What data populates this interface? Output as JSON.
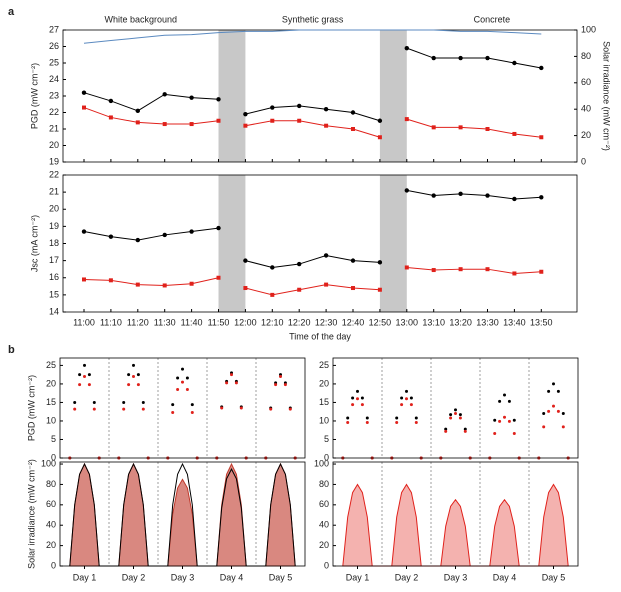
{
  "chart_data": [
    {
      "type": "line",
      "panel": "a",
      "annotations": [
        "White background",
        "Synthetic grass",
        "Concrete"
      ],
      "ylabel": "PGD (mW cm⁻²)",
      "y2label": "Solar irradiance (mW cm⁻²)",
      "ylim": [
        19,
        27
      ],
      "yticks": [
        19,
        20,
        21,
        22,
        23,
        24,
        25,
        26,
        27
      ],
      "y2lim": [
        0,
        100
      ],
      "y2ticks": [
        0,
        20,
        40,
        60,
        80,
        100
      ],
      "series": [
        {
          "color": "#000000",
          "markers": true,
          "values": [
            23.2,
            22.7,
            22.1,
            23.1,
            22.9,
            22.8,
            21.9,
            22.3,
            22.4,
            22.2,
            22.0,
            21.5,
            25.9,
            25.3,
            25.3,
            25.3,
            25.0,
            24.7
          ]
        },
        {
          "color": "#e0211b",
          "markers": true,
          "values": [
            22.3,
            21.7,
            21.4,
            21.3,
            21.3,
            21.5,
            21.2,
            21.5,
            21.5,
            21.2,
            21.0,
            20.5,
            21.6,
            21.1,
            21.1,
            21.0,
            20.7,
            20.5
          ]
        },
        {
          "color": "#5b8ac0",
          "markers": false,
          "axis": "y2",
          "values": [
            90,
            92,
            94,
            96,
            96.5,
            98,
            99,
            99,
            100,
            100,
            100,
            100,
            100,
            100,
            99,
            99,
            98,
            97
          ]
        }
      ]
    },
    {
      "type": "line",
      "ylabel": "Jsc (mA cm⁻²)",
      "xlabel": "Time of the day",
      "categories": [
        "11:00",
        "11:10",
        "11:20",
        "11:30",
        "11:40",
        "11:50",
        "12:00",
        "12:10",
        "12:20",
        "12:30",
        "12:40",
        "12:50",
        "13:00",
        "13:10",
        "13:20",
        "13:30",
        "13:40",
        "13:50"
      ],
      "shaded": [
        [
          "11:50",
          "12:00"
        ],
        [
          "12:50",
          "13:00"
        ]
      ],
      "ylim": [
        14,
        22
      ],
      "yticks": [
        14,
        15,
        16,
        17,
        18,
        19,
        20,
        21,
        22
      ],
      "series": [
        {
          "color": "#000000",
          "markers": true,
          "values": [
            18.7,
            18.4,
            18.2,
            18.5,
            18.7,
            18.9,
            17.0,
            16.6,
            16.8,
            17.3,
            17.0,
            16.9,
            21.1,
            20.8,
            20.9,
            20.8,
            20.6,
            20.7
          ]
        },
        {
          "color": "#e0211b",
          "markers": true,
          "values": [
            15.9,
            15.85,
            15.6,
            15.55,
            15.65,
            16.0,
            15.4,
            15.0,
            15.3,
            15.6,
            15.4,
            15.3,
            16.6,
            16.45,
            16.5,
            16.5,
            16.25,
            16.35
          ]
        }
      ]
    },
    {
      "type": "scatter",
      "panel": "b",
      "ylabel": "PGD (mW cm⁻²)",
      "xlim": [
        0,
        5
      ],
      "xgrid": [
        1,
        2,
        3,
        4
      ],
      "ylim": [
        0,
        27
      ],
      "yticks": [
        0,
        5,
        10,
        15,
        20,
        25
      ],
      "x": [
        0.2,
        0.3,
        0.4,
        0.5,
        0.6,
        0.7,
        0.8,
        1.2,
        1.3,
        1.4,
        1.5,
        1.6,
        1.7,
        1.8,
        2.2,
        2.3,
        2.4,
        2.5,
        2.6,
        2.7,
        2.8,
        3.2,
        3.3,
        3.4,
        3.5,
        3.6,
        3.7,
        3.8,
        4.2,
        4.3,
        4.4,
        4.5,
        4.6,
        4.7,
        4.8
      ],
      "series": [
        {
          "color": "#000000",
          "values": [
            0,
            15,
            22.5,
            25,
            22.5,
            15,
            0,
            0,
            15,
            22.5,
            25,
            22.5,
            15,
            0,
            0,
            14.4,
            21.6,
            24,
            21.6,
            14.4,
            0,
            0,
            13.8,
            20.7,
            23,
            20.7,
            13.8,
            0,
            0,
            13.5,
            20.3,
            22.5,
            20.3,
            13.5,
            0
          ]
        },
        {
          "color": "#e0211b",
          "values": [
            0,
            13.2,
            19.8,
            22,
            19.8,
            13.2,
            0,
            0,
            13.2,
            19.8,
            22,
            19.8,
            13.2,
            0,
            0,
            12.3,
            18.5,
            20.5,
            18.5,
            12.3,
            0,
            0,
            13.5,
            20.3,
            22.5,
            20.3,
            13.5,
            0,
            0,
            13.2,
            19.8,
            22,
            19.8,
            13.2,
            0
          ]
        }
      ]
    },
    {
      "type": "area",
      "ylabel": "Solar irradiance (mW cm⁻²)",
      "xlim": [
        0,
        5
      ],
      "xgrid": [
        1,
        2,
        3,
        4
      ],
      "ylim": [
        0,
        102
      ],
      "yticks": [
        0,
        20,
        40,
        60,
        80,
        100
      ],
      "xticks": [
        {
          "value": 0.5,
          "label": "Day 1"
        },
        {
          "value": 1.5,
          "label": "Day 2"
        },
        {
          "value": 2.5,
          "label": "Day 3"
        },
        {
          "value": 3.5,
          "label": "Day 4"
        },
        {
          "value": 4.5,
          "label": "Day 5"
        }
      ],
      "x": [
        0.2,
        0.3,
        0.4,
        0.5,
        0.6,
        0.7,
        0.8,
        1.2,
        1.3,
        1.4,
        1.5,
        1.6,
        1.7,
        1.8,
        2.2,
        2.3,
        2.4,
        2.5,
        2.6,
        2.7,
        2.8,
        3.2,
        3.3,
        3.4,
        3.5,
        3.6,
        3.7,
        3.8,
        4.2,
        4.3,
        4.4,
        4.5,
        4.6,
        4.7,
        4.8
      ],
      "series": [
        {
          "color": "#c0392b",
          "style": "area",
          "values": [
            0,
            60,
            90,
            100,
            90,
            60,
            0,
            0,
            60,
            90,
            100,
            90,
            60,
            0,
            0,
            51,
            76.5,
            85,
            76.5,
            51,
            0,
            0,
            60,
            90,
            100,
            90,
            60,
            0,
            0,
            60,
            90,
            100,
            90,
            60,
            0
          ]
        },
        {
          "color": "#000000",
          "style": "line",
          "values": [
            0,
            60,
            90,
            100,
            90,
            60,
            0,
            0,
            60,
            90,
            100,
            90,
            60,
            0,
            0,
            60,
            90,
            100,
            90,
            60,
            0,
            0,
            57,
            85.5,
            95,
            85.5,
            57,
            0,
            0,
            60,
            90,
            100,
            90,
            60,
            0
          ]
        }
      ]
    },
    {
      "type": "scatter",
      "xlim": [
        0,
        5
      ],
      "xgrid": [
        1,
        2,
        3,
        4
      ],
      "ylim": [
        0,
        27
      ],
      "yticks": [
        0,
        5,
        10,
        15,
        20,
        25
      ],
      "x": [
        0.2,
        0.3,
        0.4,
        0.5,
        0.6,
        0.7,
        0.8,
        1.2,
        1.3,
        1.4,
        1.5,
        1.6,
        1.7,
        1.8,
        2.2,
        2.3,
        2.4,
        2.5,
        2.6,
        2.7,
        2.8,
        3.2,
        3.3,
        3.4,
        3.5,
        3.6,
        3.7,
        3.8,
        4.2,
        4.3,
        4.4,
        4.5,
        4.6,
        4.7,
        4.8
      ],
      "series": [
        {
          "color": "#000000",
          "values": [
            0,
            10.8,
            16.2,
            18,
            16.2,
            10.8,
            0,
            0,
            10.8,
            16.2,
            18,
            16.2,
            10.8,
            0,
            0,
            7.8,
            11.7,
            13,
            11.7,
            7.8,
            0,
            0,
            10.2,
            15.3,
            17,
            15.3,
            10.2,
            0,
            0,
            12,
            18,
            20,
            18,
            12,
            0
          ]
        },
        {
          "color": "#e0211b",
          "values": [
            0,
            9.6,
            14.4,
            16,
            14.4,
            9.6,
            0,
            0,
            9.6,
            14.4,
            16,
            14.4,
            9.6,
            0,
            0,
            7.2,
            10.8,
            12,
            10.8,
            7.2,
            0,
            0,
            6.6,
            9.9,
            11,
            9.9,
            6.6,
            0,
            0,
            8.4,
            12.6,
            14,
            12.6,
            8.4,
            0
          ]
        }
      ]
    },
    {
      "type": "area",
      "xlim": [
        0,
        5
      ],
      "xgrid": [
        1,
        2,
        3,
        4
      ],
      "ylim": [
        0,
        102
      ],
      "yticks": [
        0,
        20,
        40,
        60,
        80,
        100
      ],
      "xticks": [
        {
          "value": 0.5,
          "label": "Day 1"
        },
        {
          "value": 1.5,
          "label": "Day 2"
        },
        {
          "value": 2.5,
          "label": "Day 3"
        },
        {
          "value": 3.5,
          "label": "Day 4"
        },
        {
          "value": 4.5,
          "label": "Day 5"
        }
      ],
      "x": [
        0.2,
        0.3,
        0.4,
        0.5,
        0.6,
        0.7,
        0.8,
        1.2,
        1.3,
        1.4,
        1.5,
        1.6,
        1.7,
        1.8,
        2.2,
        2.3,
        2.4,
        2.5,
        2.6,
        2.7,
        2.8,
        3.2,
        3.3,
        3.4,
        3.5,
        3.6,
        3.7,
        3.8,
        4.2,
        4.3,
        4.4,
        4.5,
        4.6,
        4.7,
        4.8
      ],
      "series": [
        {
          "color": "#e0211b",
          "style": "area",
          "values": [
            0,
            48,
            72,
            80,
            72,
            48,
            0,
            0,
            48,
            72,
            80,
            72,
            48,
            0,
            0,
            39,
            58.5,
            65,
            58.5,
            39,
            0,
            0,
            39,
            58.5,
            65,
            58.5,
            39,
            0,
            0,
            48,
            72,
            80,
            72,
            48,
            0
          ]
        }
      ]
    }
  ]
}
